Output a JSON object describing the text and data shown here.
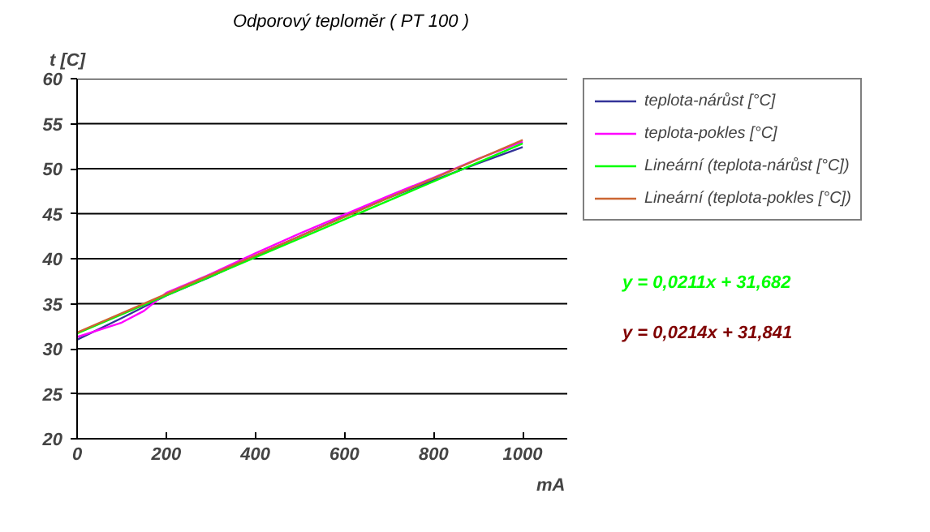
{
  "chart_data": {
    "type": "line",
    "title": "Odporový teploměr ( PT 100 )",
    "xlabel": "mA",
    "ylabel": "t [C]",
    "xlim": [
      0,
      1100
    ],
    "xticks": [
      0,
      200,
      400,
      600,
      800,
      1000
    ],
    "ylim": [
      20,
      60
    ],
    "yticks": [
      20,
      25,
      30,
      35,
      40,
      45,
      50,
      55,
      60
    ],
    "grid": "y",
    "legend": "right",
    "series": [
      {
        "name": "teplota-nárůst [°C]",
        "color": "#333399",
        "x": [
          0,
          100,
          200,
          300,
          400,
          500,
          600,
          700,
          800,
          900,
          1000
        ],
        "values": [
          31.0,
          33.4,
          35.9,
          38.0,
          40.3,
          42.5,
          44.7,
          46.8,
          48.7,
          50.6,
          52.4
        ]
      },
      {
        "name": "teplota-pokles [°C]",
        "color": "#ff00ff",
        "x": [
          0,
          100,
          150,
          200,
          300,
          400,
          500,
          600,
          700,
          800,
          900,
          1000
        ],
        "values": [
          31.3,
          32.9,
          34.2,
          36.2,
          38.3,
          40.6,
          42.8,
          44.9,
          47.0,
          49.0,
          51.1,
          53.0
        ]
      },
      {
        "name": "Lineární (teplota-nárůst [°C])",
        "color": "#00ff00",
        "x": [
          0,
          1000
        ],
        "values": [
          31.7,
          52.8
        ]
      },
      {
        "name": "Lineární (teplota-pokles [°C])",
        "color": "#cc6633",
        "x": [
          0,
          1000
        ],
        "values": [
          31.8,
          53.2
        ]
      }
    ],
    "annotations": [
      "y = 0,0211x + 31,682",
      "y = 0,0214x + 31,841"
    ]
  }
}
